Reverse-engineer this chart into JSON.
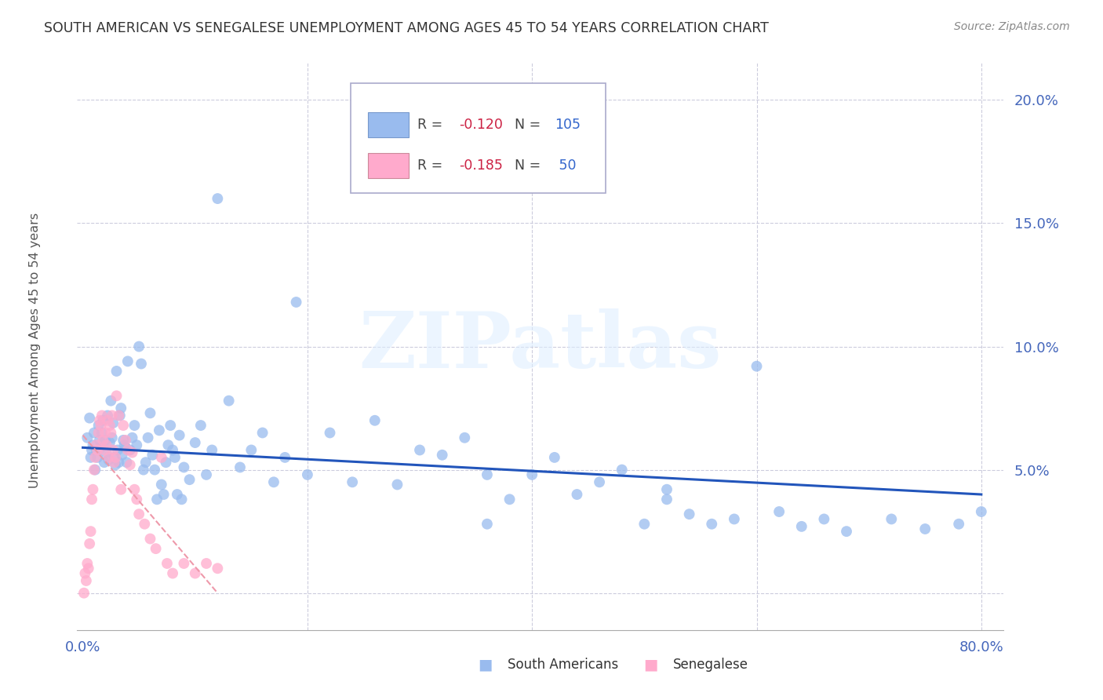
{
  "title": "SOUTH AMERICAN VS SENEGALESE UNEMPLOYMENT AMONG AGES 45 TO 54 YEARS CORRELATION CHART",
  "source": "Source: ZipAtlas.com",
  "ylabel": "Unemployment Among Ages 45 to 54 years",
  "ytick_vals": [
    0.0,
    0.05,
    0.1,
    0.15,
    0.2
  ],
  "ytick_labels": [
    "",
    "5.0%",
    "10.0%",
    "15.0%",
    "20.0%"
  ],
  "xlim": [
    -0.005,
    0.82
  ],
  "ylim": [
    -0.015,
    0.215
  ],
  "blue_color": "#99BBEE",
  "pink_color": "#FFAACC",
  "blue_trend_color": "#2255BB",
  "pink_trend_color": "#EE99AA",
  "axis_color": "#4466BB",
  "grid_color": "#CCCCDD",
  "watermark": "ZIPatlas",
  "legend_R_blue": "-0.120",
  "legend_N_blue": "105",
  "legend_R_pink": "-0.185",
  "legend_N_pink": "50",
  "blue_trend_x": [
    0.0,
    0.8
  ],
  "blue_trend_y": [
    0.059,
    0.04
  ],
  "pink_trend_x": [
    0.0,
    0.12
  ],
  "pink_trend_y": [
    0.064,
    0.0
  ],
  "blue_scatter_x": [
    0.004,
    0.006,
    0.007,
    0.008,
    0.009,
    0.01,
    0.011,
    0.012,
    0.013,
    0.014,
    0.015,
    0.016,
    0.017,
    0.018,
    0.019,
    0.02,
    0.021,
    0.022,
    0.023,
    0.024,
    0.025,
    0.026,
    0.027,
    0.028,
    0.029,
    0.03,
    0.031,
    0.032,
    0.033,
    0.034,
    0.035,
    0.036,
    0.037,
    0.038,
    0.039,
    0.04,
    0.042,
    0.044,
    0.046,
    0.048,
    0.05,
    0.052,
    0.054,
    0.056,
    0.058,
    0.06,
    0.062,
    0.064,
    0.066,
    0.068,
    0.07,
    0.072,
    0.074,
    0.076,
    0.078,
    0.08,
    0.082,
    0.084,
    0.086,
    0.088,
    0.09,
    0.095,
    0.1,
    0.105,
    0.11,
    0.115,
    0.12,
    0.13,
    0.14,
    0.15,
    0.16,
    0.17,
    0.18,
    0.19,
    0.2,
    0.22,
    0.24,
    0.26,
    0.28,
    0.3,
    0.32,
    0.34,
    0.36,
    0.38,
    0.4,
    0.42,
    0.44,
    0.46,
    0.48,
    0.5,
    0.52,
    0.54,
    0.56,
    0.58,
    0.6,
    0.62,
    0.64,
    0.66,
    0.68,
    0.72,
    0.75,
    0.78,
    0.8,
    0.52,
    0.36
  ],
  "blue_scatter_y": [
    0.063,
    0.071,
    0.055,
    0.058,
    0.06,
    0.065,
    0.05,
    0.058,
    0.055,
    0.068,
    0.062,
    0.059,
    0.065,
    0.07,
    0.053,
    0.062,
    0.057,
    0.072,
    0.054,
    0.061,
    0.078,
    0.063,
    0.069,
    0.055,
    0.052,
    0.09,
    0.058,
    0.053,
    0.072,
    0.075,
    0.056,
    0.062,
    0.06,
    0.059,
    0.053,
    0.094,
    0.058,
    0.063,
    0.068,
    0.06,
    0.1,
    0.093,
    0.05,
    0.053,
    0.063,
    0.073,
    0.056,
    0.05,
    0.038,
    0.066,
    0.044,
    0.04,
    0.053,
    0.06,
    0.068,
    0.058,
    0.055,
    0.04,
    0.064,
    0.038,
    0.051,
    0.046,
    0.061,
    0.068,
    0.048,
    0.058,
    0.16,
    0.078,
    0.051,
    0.058,
    0.065,
    0.045,
    0.055,
    0.118,
    0.048,
    0.065,
    0.045,
    0.07,
    0.044,
    0.058,
    0.056,
    0.063,
    0.048,
    0.038,
    0.048,
    0.055,
    0.04,
    0.045,
    0.05,
    0.028,
    0.042,
    0.032,
    0.028,
    0.03,
    0.092,
    0.033,
    0.027,
    0.03,
    0.025,
    0.03,
    0.026,
    0.028,
    0.033,
    0.038,
    0.028
  ],
  "pink_scatter_x": [
    0.001,
    0.002,
    0.003,
    0.004,
    0.005,
    0.006,
    0.007,
    0.008,
    0.009,
    0.01,
    0.011,
    0.012,
    0.013,
    0.014,
    0.015,
    0.016,
    0.017,
    0.018,
    0.019,
    0.02,
    0.021,
    0.022,
    0.023,
    0.024,
    0.025,
    0.026,
    0.027,
    0.028,
    0.029,
    0.03,
    0.032,
    0.034,
    0.036,
    0.038,
    0.04,
    0.042,
    0.044,
    0.046,
    0.048,
    0.05,
    0.055,
    0.06,
    0.065,
    0.07,
    0.075,
    0.08,
    0.09,
    0.1,
    0.11,
    0.12
  ],
  "pink_scatter_y": [
    0.0,
    0.008,
    0.005,
    0.012,
    0.01,
    0.02,
    0.025,
    0.038,
    0.042,
    0.05,
    0.055,
    0.06,
    0.058,
    0.065,
    0.07,
    0.068,
    0.072,
    0.062,
    0.058,
    0.065,
    0.06,
    0.07,
    0.055,
    0.068,
    0.065,
    0.072,
    0.058,
    0.053,
    0.055,
    0.08,
    0.072,
    0.042,
    0.068,
    0.062,
    0.058,
    0.052,
    0.057,
    0.042,
    0.038,
    0.032,
    0.028,
    0.022,
    0.018,
    0.055,
    0.012,
    0.008,
    0.012,
    0.008,
    0.012,
    0.01
  ]
}
